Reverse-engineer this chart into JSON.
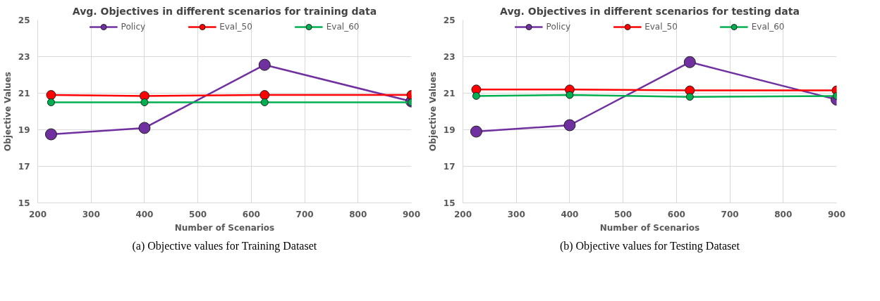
{
  "chart_data": [
    {
      "type": "line",
      "title": "Avg. Objectives in different scenarios for training data",
      "xlabel": "Number of Scenarios",
      "ylabel": "Objective Values",
      "x": [
        225,
        400,
        625,
        900
      ],
      "series": [
        {
          "name": "Policy",
          "color": "#7030a0",
          "values": [
            18.75,
            19.1,
            22.55,
            20.55
          ]
        },
        {
          "name": "Eval_50",
          "color": "#ff0000",
          "values": [
            20.9,
            20.85,
            20.9,
            20.9
          ]
        },
        {
          "name": "Eval_60",
          "color": "#00b050",
          "values": [
            20.5,
            20.5,
            20.5,
            20.5
          ]
        }
      ],
      "xlim": [
        200,
        900
      ],
      "xticks": [
        200,
        300,
        400,
        500,
        600,
        700,
        800,
        900
      ],
      "ylim": [
        15,
        25
      ],
      "yticks": [
        15,
        17,
        19,
        21,
        23,
        25
      ],
      "grid": true,
      "legend": "top",
      "marker": "circle",
      "line_style": "solid",
      "annotations": [
        "(a) Objective values for Training Dataset"
      ]
    },
    {
      "type": "line",
      "title": "Avg. Objectives in different scenarios for testing data",
      "xlabel": "Number of Scenarios",
      "ylabel": "Objective Values",
      "x": [
        225,
        400,
        625,
        900
      ],
      "series": [
        {
          "name": "Policy",
          "color": "#7030a0",
          "values": [
            18.9,
            19.25,
            22.7,
            20.65
          ]
        },
        {
          "name": "Eval_50",
          "color": "#ff0000",
          "values": [
            21.2,
            21.2,
            21.15,
            21.15
          ]
        },
        {
          "name": "Eval_60",
          "color": "#00b050",
          "values": [
            20.85,
            20.9,
            20.8,
            20.85
          ]
        }
      ],
      "xlim": [
        200,
        900
      ],
      "xticks": [
        200,
        300,
        400,
        500,
        600,
        700,
        800,
        900
      ],
      "ylim": [
        15,
        25
      ],
      "yticks": [
        15,
        17,
        19,
        21,
        23,
        25
      ],
      "grid": true,
      "legend": "top",
      "marker": "circle",
      "line_style": "solid",
      "annotations": [
        "(b) Objective values for Testing Dataset"
      ]
    }
  ]
}
